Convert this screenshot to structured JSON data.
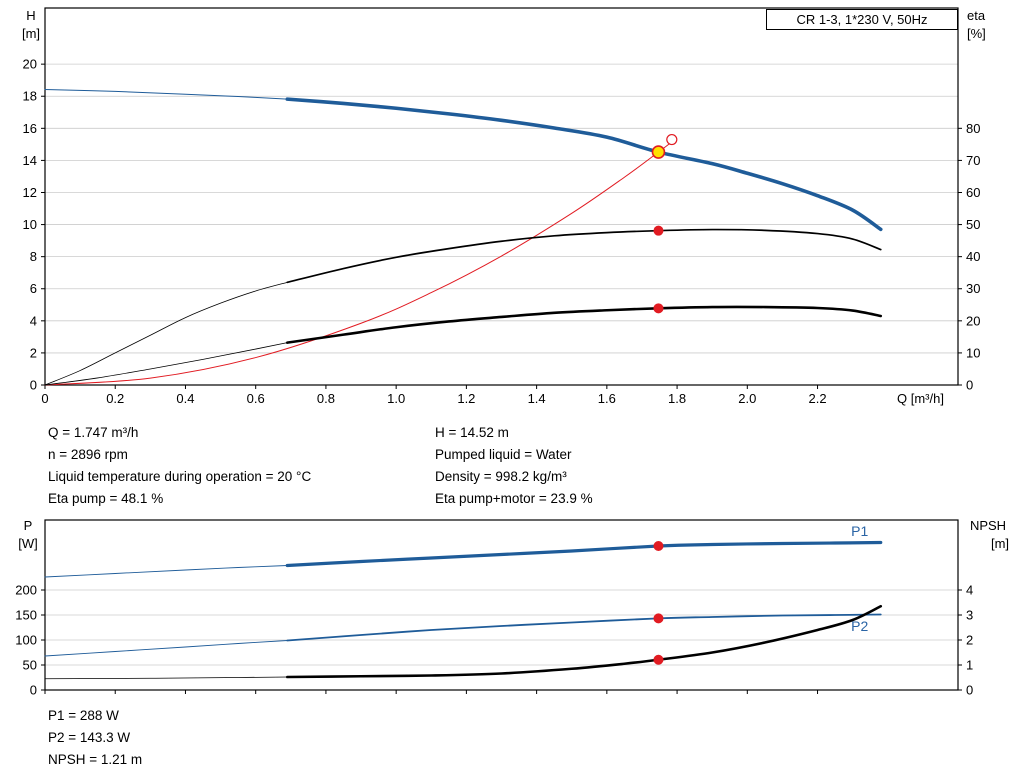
{
  "header_box": {
    "label": "CR 1-3, 1*230 V, 50Hz"
  },
  "info_top": {
    "left": [
      "Q = 1.747 m³/h",
      "n = 2896 rpm",
      "Liquid temperature during operation = 20 °C",
      "Eta pump = 48.1 %"
    ],
    "right": [
      "H = 14.52 m",
      "Pumped liquid = Water",
      "Density = 998.2 kg/m³",
      "Eta pump+motor = 23.9 %"
    ]
  },
  "info_bottom": [
    "P1 = 288 W",
    "P2 = 143.3 W",
    "NPSH = 1.21 m"
  ],
  "colors": {
    "curve_blue": "#1f5c99",
    "label_blue": "#2a64a5",
    "red": "#e11b22",
    "yellow": "#ffe000",
    "black": "#000000",
    "grid": "#cccccc",
    "border": "#000000",
    "white": "#ffffff"
  },
  "chart_data": [
    {
      "type": "line",
      "name": "pump-performance",
      "title": "QH and efficiency curves",
      "x_axis": {
        "label": "Q [m³/h]",
        "range": [
          0,
          2.6
        ],
        "ticks": [
          {
            "v": 0,
            "label": "0"
          },
          {
            "v": 0.2,
            "label": "0.2"
          },
          {
            "v": 0.4,
            "label": "0.4"
          },
          {
            "v": 0.6,
            "label": "0.6"
          },
          {
            "v": 0.8,
            "label": "0.8"
          },
          {
            "v": 1.0,
            "label": "1.0"
          },
          {
            "v": 1.2,
            "label": "1.2"
          },
          {
            "v": 1.4,
            "label": "1.4"
          },
          {
            "v": 1.6,
            "label": "1.6"
          },
          {
            "v": 1.8,
            "label": "1.8"
          },
          {
            "v": 2.0,
            "label": "2.0"
          },
          {
            "v": 2.2,
            "label": "2.2"
          }
        ]
      },
      "y_axis_left": {
        "label_lines": [
          "H",
          "[m]"
        ],
        "range": [
          0,
          23.5
        ],
        "ticks": [
          {
            "v": 0,
            "label": "0"
          },
          {
            "v": 2,
            "label": "2"
          },
          {
            "v": 4,
            "label": "4"
          },
          {
            "v": 6,
            "label": "6"
          },
          {
            "v": 8,
            "label": "8"
          },
          {
            "v": 10,
            "label": "10"
          },
          {
            "v": 12,
            "label": "12"
          },
          {
            "v": 14,
            "label": "14"
          },
          {
            "v": 16,
            "label": "16"
          },
          {
            "v": 18,
            "label": "18"
          },
          {
            "v": 20,
            "label": "20"
          }
        ]
      },
      "y_axis_right": {
        "label_lines": [
          "eta",
          "[%]"
        ],
        "range": [
          0,
          117.5
        ],
        "ticks": [
          {
            "v": 0,
            "label": "0"
          },
          {
            "v": 10,
            "label": "10"
          },
          {
            "v": 20,
            "label": "20"
          },
          {
            "v": 30,
            "label": "30"
          },
          {
            "v": 40,
            "label": "40"
          },
          {
            "v": 50,
            "label": "50"
          },
          {
            "v": 60,
            "label": "60"
          },
          {
            "v": 70,
            "label": "70"
          },
          {
            "v": 80,
            "label": "80"
          }
        ]
      },
      "series": [
        {
          "name": "head-curve-extension",
          "axis": "left",
          "color": "curve_blue",
          "width": 1,
          "points": [
            [
              0,
              18.42
            ],
            [
              0.2,
              18.3
            ],
            [
              0.4,
              18.12
            ],
            [
              0.55,
              17.98
            ],
            [
              0.69,
              17.82
            ]
          ]
        },
        {
          "name": "head-curve",
          "axis": "left",
          "color": "curve_blue",
          "width": 3.6,
          "points": [
            [
              0.69,
              17.82
            ],
            [
              0.85,
              17.55
            ],
            [
              1.0,
              17.25
            ],
            [
              1.15,
              16.9
            ],
            [
              1.3,
              16.5
            ],
            [
              1.45,
              16.02
            ],
            [
              1.6,
              15.45
            ],
            [
              1.747,
              14.52
            ],
            [
              1.9,
              13.8
            ],
            [
              2.0,
              13.2
            ],
            [
              2.1,
              12.55
            ],
            [
              2.2,
              11.8
            ],
            [
              2.3,
              10.9
            ],
            [
              2.38,
              9.7
            ]
          ]
        },
        {
          "name": "system-curve",
          "axis": "left",
          "color": "red",
          "width": 1,
          "points": [
            [
              0,
              0
            ],
            [
              0.3,
              0.43
            ],
            [
              0.6,
              1.71
            ],
            [
              0.9,
              3.85
            ],
            [
              1.1,
              5.76
            ],
            [
              1.3,
              8.04
            ],
            [
              1.5,
              10.7
            ],
            [
              1.65,
              12.95
            ],
            [
              1.747,
              14.52
            ],
            [
              1.785,
              15.15
            ]
          ]
        },
        {
          "name": "eta-pump-extension",
          "axis": "right",
          "color": "black",
          "width": 0.8,
          "points": [
            [
              0,
              0
            ],
            [
              0.1,
              4.5
            ],
            [
              0.2,
              10
            ],
            [
              0.3,
              15.5
            ],
            [
              0.4,
              21
            ],
            [
              0.5,
              25.5
            ],
            [
              0.6,
              29.3
            ],
            [
              0.69,
              32
            ]
          ]
        },
        {
          "name": "eta-pump-curve",
          "axis": "right",
          "color": "black",
          "width": 1.7,
          "points": [
            [
              0.69,
              32
            ],
            [
              0.85,
              36.3
            ],
            [
              1.0,
              39.8
            ],
            [
              1.15,
              42.5
            ],
            [
              1.3,
              44.8
            ],
            [
              1.45,
              46.5
            ],
            [
              1.6,
              47.5
            ],
            [
              1.747,
              48.1
            ],
            [
              1.9,
              48.45
            ],
            [
              2.05,
              48.2
            ],
            [
              2.2,
              47.2
            ],
            [
              2.3,
              45.5
            ],
            [
              2.38,
              42.2
            ]
          ]
        },
        {
          "name": "eta-pump-motor-extension",
          "axis": "right",
          "color": "black",
          "width": 0.8,
          "points": [
            [
              0,
              0
            ],
            [
              0.15,
              2.2
            ],
            [
              0.3,
              5
            ],
            [
              0.45,
              8
            ],
            [
              0.6,
              11.2
            ],
            [
              0.69,
              13.2
            ]
          ]
        },
        {
          "name": "eta-pump-motor-curve",
          "axis": "right",
          "color": "black",
          "width": 2.6,
          "points": [
            [
              0.69,
              13.2
            ],
            [
              0.85,
              15.7
            ],
            [
              1.0,
              18
            ],
            [
              1.15,
              19.8
            ],
            [
              1.3,
              21.2
            ],
            [
              1.45,
              22.5
            ],
            [
              1.6,
              23.3
            ],
            [
              1.747,
              23.9
            ],
            [
              1.9,
              24.3
            ],
            [
              2.05,
              24.3
            ],
            [
              2.2,
              24.0
            ],
            [
              2.3,
              23.2
            ],
            [
              2.38,
              21.5
            ]
          ]
        }
      ],
      "points": [
        {
          "name": "requested-duty-point",
          "axis": "left",
          "x": 1.785,
          "y": 15.3,
          "r": 5,
          "fill": "white",
          "stroke": "red",
          "stroke_width": 1.2
        },
        {
          "name": "duty-point",
          "axis": "left",
          "x": 1.747,
          "y": 14.52,
          "r": 6,
          "fill": "yellow",
          "stroke": "red",
          "stroke_width": 1.6
        },
        {
          "name": "eta-pump-point",
          "axis": "right",
          "x": 1.747,
          "y": 48.1,
          "r": 5,
          "fill": "red"
        },
        {
          "name": "eta-pump-motor-point",
          "axis": "right",
          "x": 1.747,
          "y": 23.9,
          "r": 5,
          "fill": "red"
        }
      ],
      "annotations": []
    },
    {
      "type": "line",
      "name": "power-npsh",
      "title": "Power and NPSH curves",
      "x_axis": {
        "label": "",
        "range": [
          0,
          2.6
        ],
        "ticks": [
          0,
          0.2,
          0.4,
          0.6,
          0.8,
          1.0,
          1.2,
          1.4,
          1.6,
          1.8,
          2.0,
          2.2
        ]
      },
      "y_axis_left": {
        "label_lines": [
          "P",
          "[W]"
        ],
        "range": [
          0,
          340
        ],
        "ticks": [
          {
            "v": 0,
            "label": "0"
          },
          {
            "v": 50,
            "label": "50"
          },
          {
            "v": 100,
            "label": "100"
          },
          {
            "v": 150,
            "label": "150"
          },
          {
            "v": 200,
            "label": "200"
          }
        ]
      },
      "y_axis_right": {
        "label_lines": [
          "NPSH",
          "[m]"
        ],
        "range": [
          0,
          6.8
        ],
        "ticks": [
          {
            "v": 0,
            "label": "0"
          },
          {
            "v": 1,
            "label": "1"
          },
          {
            "v": 2,
            "label": "2"
          },
          {
            "v": 3,
            "label": "3"
          },
          {
            "v": 4,
            "label": "4"
          }
        ]
      },
      "series": [
        {
          "name": "p1-curve-extension",
          "axis": "left",
          "color": "curve_blue",
          "width": 0.9,
          "points": [
            [
              0,
              226
            ],
            [
              0.2,
              233
            ],
            [
              0.4,
              240
            ],
            [
              0.55,
              245
            ],
            [
              0.69,
              249
            ]
          ]
        },
        {
          "name": "p1-curve",
          "axis": "left",
          "color": "curve_blue",
          "width": 3.2,
          "points": [
            [
              0.69,
              249
            ],
            [
              0.9,
              257
            ],
            [
              1.1,
              264
            ],
            [
              1.3,
              271
            ],
            [
              1.5,
              278
            ],
            [
              1.747,
              288
            ],
            [
              1.9,
              291
            ],
            [
              2.1,
              293
            ],
            [
              2.25,
              294
            ],
            [
              2.38,
              295
            ]
          ]
        },
        {
          "name": "p2-curve-extension",
          "axis": "left",
          "color": "curve_blue",
          "width": 0.9,
          "points": [
            [
              0,
              68
            ],
            [
              0.2,
              77
            ],
            [
              0.4,
              86
            ],
            [
              0.55,
              93
            ],
            [
              0.69,
              99
            ]
          ]
        },
        {
          "name": "p2-curve",
          "axis": "left",
          "color": "curve_blue",
          "width": 1.8,
          "points": [
            [
              0.69,
              99
            ],
            [
              0.9,
              110
            ],
            [
              1.1,
              120
            ],
            [
              1.3,
              128
            ],
            [
              1.5,
              135
            ],
            [
              1.747,
              143.3
            ],
            [
              1.9,
              146
            ],
            [
              2.1,
              149
            ],
            [
              2.25,
              150
            ],
            [
              2.38,
              151
            ]
          ]
        },
        {
          "name": "npsh-curve-extension",
          "axis": "right",
          "color": "black",
          "width": 0.8,
          "points": [
            [
              0,
              0.45
            ],
            [
              0.3,
              0.47
            ],
            [
              0.55,
              0.5
            ],
            [
              0.69,
              0.52
            ]
          ]
        },
        {
          "name": "npsh-curve",
          "axis": "right",
          "color": "black",
          "width": 2.6,
          "points": [
            [
              0.69,
              0.52
            ],
            [
              0.9,
              0.55
            ],
            [
              1.1,
              0.58
            ],
            [
              1.3,
              0.66
            ],
            [
              1.5,
              0.85
            ],
            [
              1.65,
              1.05
            ],
            [
              1.747,
              1.21
            ],
            [
              1.9,
              1.5
            ],
            [
              2.05,
              1.9
            ],
            [
              2.2,
              2.4
            ],
            [
              2.3,
              2.8
            ],
            [
              2.38,
              3.35
            ]
          ]
        }
      ],
      "points": [
        {
          "name": "p1-point",
          "axis": "left",
          "x": 1.747,
          "y": 288,
          "r": 5,
          "fill": "red"
        },
        {
          "name": "p2-point",
          "axis": "left",
          "x": 1.747,
          "y": 143.3,
          "r": 5,
          "fill": "red"
        },
        {
          "name": "npsh-point",
          "axis": "right",
          "x": 1.747,
          "y": 1.21,
          "r": 5,
          "fill": "red"
        }
      ],
      "annotations": [
        {
          "name": "p1-label",
          "text": "P1",
          "axis": "left",
          "x": 2.32,
          "y": 308,
          "color": "label_blue"
        },
        {
          "name": "p2-label",
          "text": "P2",
          "axis": "left",
          "x": 2.32,
          "y": 118,
          "color": "label_blue"
        }
      ]
    }
  ]
}
